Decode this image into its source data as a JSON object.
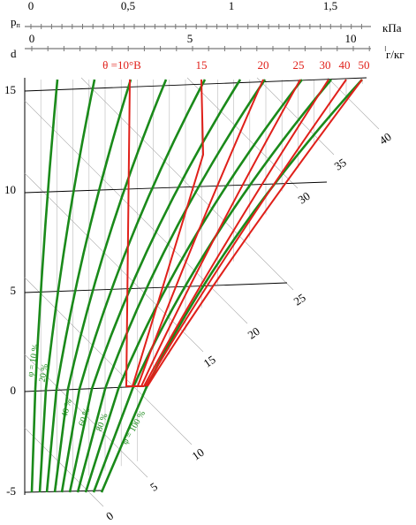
{
  "pressure_axis": {
    "symbol": "p",
    "subscript": "п",
    "ticks": [
      "0",
      "0,5",
      "1",
      "1,5"
    ],
    "unit": "кПа"
  },
  "moisture_axis": {
    "symbol": "d",
    "ticks": [
      "0",
      "5",
      "10"
    ],
    "unit": "г/кг"
  },
  "temperature_axis": {
    "ticks": [
      "15",
      "10",
      "5",
      "0",
      "-5"
    ]
  },
  "wet_bulb_labels": [
    "θ =10°B",
    "15",
    "20",
    "25",
    "30",
    "40",
    "50"
  ],
  "enthalpy_labels": [
    "0",
    "5",
    "10",
    "15",
    "20",
    "25",
    "30",
    "35",
    "40"
  ],
  "humidity_labels": [
    "φ = 10 %",
    "20 %",
    "40 %",
    "60 %",
    "80 %",
    "φ = 100 %"
  ]
}
